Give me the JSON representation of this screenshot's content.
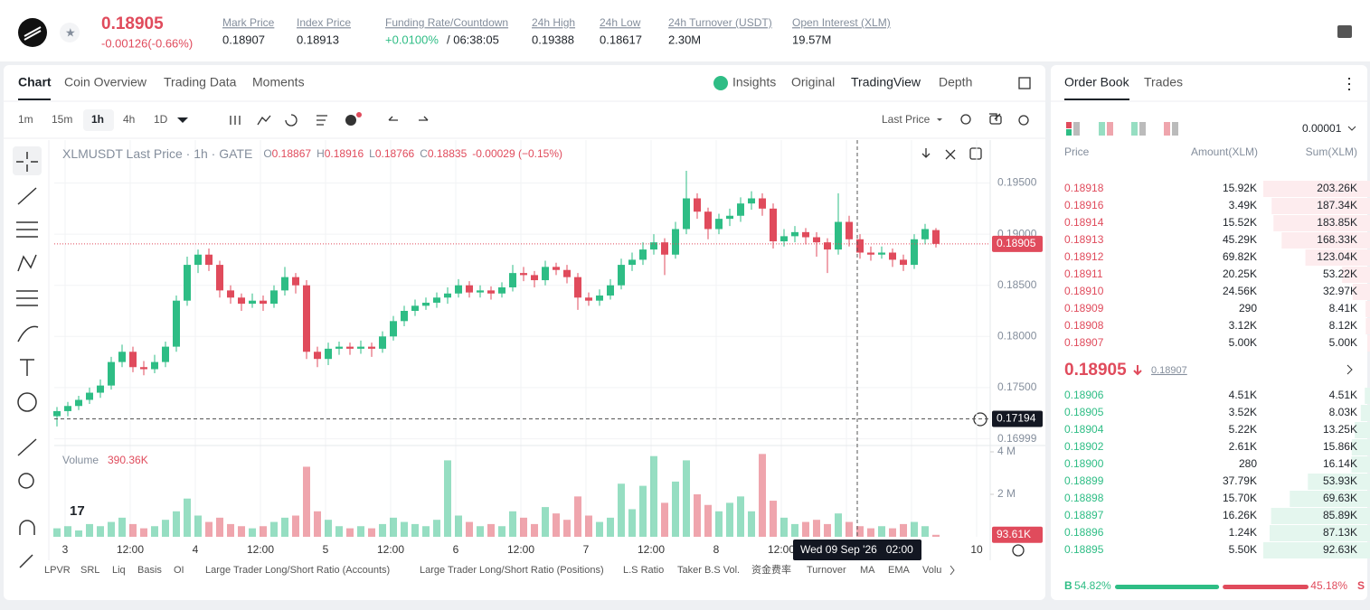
{
  "header": {
    "price": "0.18905",
    "change": "-0.00126(-0.66%)",
    "stats": [
      {
        "label": "Mark Price",
        "value": "0.18907"
      },
      {
        "label": "Index Price",
        "value": "0.18913"
      },
      {
        "label": "Funding Rate/Countdown",
        "value": "+0.0100%",
        "extra": "/ 06:38:05"
      },
      {
        "label": "24h High",
        "value": "0.19388"
      },
      {
        "label": "24h Low",
        "value": "0.18617"
      },
      {
        "label": "24h Turnover (USDT)",
        "value": "2.30M"
      },
      {
        "label": "Open Interest (XLM)",
        "value": "19.57M"
      }
    ]
  },
  "chart_tabs": [
    "Chart",
    "Coin Overview",
    "Trading Data",
    "Moments"
  ],
  "view_tabs": [
    "Insights",
    "Original",
    "TradingView",
    "Depth"
  ],
  "intervals": [
    "1m",
    "15m",
    "1h",
    "4h",
    "1D"
  ],
  "price_source": "Last Price",
  "chart_data": {
    "type": "candlestick",
    "title": "XLMUSDT Last Price · 1h · GATE",
    "ohlc": [
      {
        "label": "O",
        "value": "0.18867"
      },
      {
        "label": "H",
        "value": "0.18916"
      },
      {
        "label": "L",
        "value": "0.18766"
      },
      {
        "label": "C",
        "value": "0.18835"
      }
    ],
    "bar_change": "-0.00029 (−0.15%)",
    "ylim": [
      0.1696,
      0.1992
    ],
    "yticks": [
      {
        "value": 0.195,
        "label": "0.19500"
      },
      {
        "value": 0.19,
        "label": "0.19000"
      },
      {
        "value": 0.185,
        "label": "0.18500"
      },
      {
        "value": 0.18,
        "label": "0.18000"
      },
      {
        "value": 0.175,
        "label": "0.17500"
      },
      0.16999
    ],
    "up_color": "#2ebd85",
    "down_color": "#e04b5c",
    "grid": true,
    "last_price": 0.18905,
    "crosshair_price": 0.17194,
    "crosshair_time": "Wed 09 Sep '26   02:00",
    "x_labels": [
      "3",
      "12:00",
      "4",
      "12:00",
      "5",
      "12:00",
      "6",
      "12:00",
      "7",
      "12:00",
      "8",
      "12:00",
      null,
      null,
      "10"
    ],
    "candles": [
      [
        0.1722,
        0.1731,
        0.1712,
        0.1727
      ],
      [
        0.1727,
        0.1736,
        0.1722,
        0.1732
      ],
      [
        0.1732,
        0.1742,
        0.1728,
        0.1738
      ],
      [
        0.1738,
        0.175,
        0.1734,
        0.1745
      ],
      [
        0.1745,
        0.1758,
        0.174,
        0.1752
      ],
      [
        0.1752,
        0.178,
        0.1748,
        0.1775
      ],
      [
        0.1775,
        0.1792,
        0.177,
        0.1785
      ],
      [
        0.1785,
        0.179,
        0.1765,
        0.177
      ],
      [
        0.177,
        0.1776,
        0.1762,
        0.1768
      ],
      [
        0.1768,
        0.1782,
        0.1764,
        0.1775
      ],
      [
        0.1775,
        0.1795,
        0.177,
        0.179
      ],
      [
        0.179,
        0.184,
        0.1785,
        0.1835
      ],
      [
        0.1835,
        0.1878,
        0.183,
        0.187
      ],
      [
        0.187,
        0.1885,
        0.1862,
        0.188
      ],
      [
        0.188,
        0.1886,
        0.1864,
        0.187
      ],
      [
        0.187,
        0.1874,
        0.1838,
        0.1845
      ],
      [
        0.1845,
        0.185,
        0.1832,
        0.1838
      ],
      [
        0.1838,
        0.1842,
        0.1825,
        0.1832
      ],
      [
        0.1832,
        0.1842,
        0.1828,
        0.1835
      ],
      [
        0.1835,
        0.184,
        0.1825,
        0.1832
      ],
      [
        0.1832,
        0.185,
        0.1828,
        0.1845
      ],
      [
        0.1845,
        0.1868,
        0.184,
        0.1858
      ],
      [
        0.1858,
        0.1862,
        0.1842,
        0.185
      ],
      [
        0.185,
        0.1855,
        0.1778,
        0.1785
      ],
      [
        0.1785,
        0.179,
        0.177,
        0.1778
      ],
      [
        0.1778,
        0.1794,
        0.1772,
        0.1788
      ],
      [
        0.1788,
        0.1795,
        0.1782,
        0.179
      ],
      [
        0.179,
        0.1794,
        0.1782,
        0.1788
      ],
      [
        0.1788,
        0.1796,
        0.1783,
        0.179
      ],
      [
        0.179,
        0.1794,
        0.178,
        0.1788
      ],
      [
        0.1788,
        0.1805,
        0.1784,
        0.18
      ],
      [
        0.18,
        0.182,
        0.1796,
        0.1815
      ],
      [
        0.1815,
        0.183,
        0.181,
        0.1825
      ],
      [
        0.1825,
        0.1836,
        0.182,
        0.183
      ],
      [
        0.183,
        0.1838,
        0.1826,
        0.1833
      ],
      [
        0.1833,
        0.1843,
        0.1828,
        0.1838
      ],
      [
        0.1838,
        0.1848,
        0.1832,
        0.1842
      ],
      [
        0.1842,
        0.1856,
        0.1838,
        0.185
      ],
      [
        0.185,
        0.1854,
        0.1838,
        0.1843
      ],
      [
        0.1843,
        0.185,
        0.1838,
        0.1845
      ],
      [
        0.1845,
        0.1849,
        0.1836,
        0.1842
      ],
      [
        0.1842,
        0.1853,
        0.1838,
        0.1848
      ],
      [
        0.1848,
        0.187,
        0.1844,
        0.1862
      ],
      [
        0.1862,
        0.1868,
        0.1854,
        0.186
      ],
      [
        0.186,
        0.1864,
        0.1848,
        0.1855
      ],
      [
        0.1855,
        0.1874,
        0.185,
        0.1868
      ],
      [
        0.1868,
        0.1872,
        0.186,
        0.1865
      ],
      [
        0.1865,
        0.187,
        0.1852,
        0.1858
      ],
      [
        0.1858,
        0.1862,
        0.1826,
        0.1838
      ],
      [
        0.1838,
        0.1843,
        0.183,
        0.1835
      ],
      [
        0.1835,
        0.1846,
        0.183,
        0.184
      ],
      [
        0.184,
        0.1856,
        0.1836,
        0.185
      ],
      [
        0.185,
        0.1876,
        0.1846,
        0.187
      ],
      [
        0.187,
        0.1882,
        0.1864,
        0.1875
      ],
      [
        0.1875,
        0.1892,
        0.187,
        0.1885
      ],
      [
        0.1885,
        0.19,
        0.188,
        0.1892
      ],
      [
        0.1892,
        0.1896,
        0.186,
        0.188
      ],
      [
        0.188,
        0.1912,
        0.1876,
        0.1905
      ],
      [
        0.1905,
        0.1962,
        0.19,
        0.1935
      ],
      [
        0.1935,
        0.194,
        0.1915,
        0.1922
      ],
      [
        0.1922,
        0.1926,
        0.1895,
        0.1905
      ],
      [
        0.1905,
        0.192,
        0.19,
        0.1915
      ],
      [
        0.1915,
        0.1925,
        0.1908,
        0.1918
      ],
      [
        0.1918,
        0.1936,
        0.1912,
        0.193
      ],
      [
        0.193,
        0.1942,
        0.1924,
        0.1935
      ],
      [
        0.1935,
        0.194,
        0.1918,
        0.1925
      ],
      [
        0.1925,
        0.193,
        0.1886,
        0.1893
      ],
      [
        0.1893,
        0.1905,
        0.1888,
        0.1898
      ],
      [
        0.1898,
        0.1908,
        0.1892,
        0.1902
      ],
      [
        0.1902,
        0.1906,
        0.189,
        0.1897
      ],
      [
        0.1897,
        0.1902,
        0.1878,
        0.1892
      ],
      [
        0.1892,
        0.1896,
        0.1862,
        0.1885
      ],
      [
        0.1885,
        0.194,
        0.188,
        0.1912
      ],
      [
        0.1912,
        0.1918,
        0.1888,
        0.1895
      ],
      [
        0.1895,
        0.19,
        0.1876,
        0.1882
      ],
      [
        0.1882,
        0.1888,
        0.1874,
        0.188
      ],
      [
        0.188,
        0.1888,
        0.1876,
        0.1882
      ],
      [
        0.1882,
        0.1886,
        0.1868,
        0.1875
      ],
      [
        0.1875,
        0.188,
        0.1864,
        0.187
      ],
      [
        0.187,
        0.19,
        0.1866,
        0.1895
      ],
      [
        0.1895,
        0.191,
        0.189,
        0.1905
      ],
      [
        0.1904,
        0.1906,
        0.1887,
        0.18905
      ]
    ],
    "volume_title": "Volume",
    "volume_value": "390.36K",
    "vylim": [
      0,
      4000000
    ],
    "vyticks": [
      {
        "value": 2000000,
        "label": "2 M"
      },
      {
        "value": 4000000,
        "label": "4 M"
      }
    ],
    "volumes": [
      400000,
      500000,
      300000,
      600000,
      500000,
      700000,
      900000,
      600000,
      400000,
      500000,
      800000,
      1200000,
      1800000,
      1000000,
      700000,
      900000,
      600000,
      500000,
      400000,
      500000,
      700000,
      900000,
      1000000,
      3300000,
      1200000,
      800000,
      500000,
      400000,
      500000,
      400000,
      600000,
      900000,
      700000,
      600000,
      500000,
      800000,
      3600000,
      1000000,
      700000,
      500000,
      600000,
      500000,
      1200000,
      900000,
      600000,
      1400000,
      1100000,
      800000,
      1900000,
      1000000,
      700000,
      900000,
      2500000,
      1300000,
      2400000,
      3800000,
      1600000,
      2600000,
      3600000,
      2000000,
      1500000,
      1200000,
      1600000,
      1900000,
      1200000,
      3900000,
      1700000,
      900000,
      600000,
      700000,
      800000,
      600000,
      1100000,
      700000,
      500000,
      400000,
      500000,
      400000,
      600000,
      700000,
      500000,
      93610
    ],
    "last_volume_label": "93.61K"
  },
  "indicators": [
    "LPVR",
    "SRL",
    "Liq",
    "Basis",
    "OI",
    "Large Trader Long/Short Ratio (Accounts)",
    "Large Trader Long/Short Ratio (Positions)",
    "L.S Ratio",
    "Taker B.S Vol.",
    "资金费率",
    "Turnover",
    "MA",
    "EMA",
    "Volu"
  ],
  "order_book": {
    "tabs": [
      "Order Book",
      "Trades"
    ],
    "precision": "0.00001",
    "headers": [
      "Price",
      "Amount(XLM)",
      "Sum(XLM)"
    ],
    "asks": [
      {
        "price": "0.18918",
        "amount": "15.92K",
        "sum": 203260,
        "sum_label": "203.26K"
      },
      {
        "price": "0.18916",
        "amount": "3.49K",
        "sum": 187340,
        "sum_label": "187.34K"
      },
      {
        "price": "0.18914",
        "amount": "15.52K",
        "sum": 183850,
        "sum_label": "183.85K"
      },
      {
        "price": "0.18913",
        "amount": "45.29K",
        "sum": 168330,
        "sum_label": "168.33K"
      },
      {
        "price": "0.18912",
        "amount": "69.82K",
        "sum": 123040,
        "sum_label": "123.04K"
      },
      {
        "price": "0.18911",
        "amount": "20.25K",
        "sum": 53220,
        "sum_label": "53.22K"
      },
      {
        "price": "0.18910",
        "amount": "24.56K",
        "sum": 32970,
        "sum_label": "32.97K"
      },
      {
        "price": "0.18909",
        "amount": "290",
        "sum": 8410,
        "sum_label": "8.41K"
      },
      {
        "price": "0.18908",
        "amount": "3.12K",
        "sum": 8120,
        "sum_label": "8.12K"
      },
      {
        "price": "0.18907",
        "amount": "5.00K",
        "sum": 5000,
        "sum_label": "5.00K"
      }
    ],
    "mid_price": "0.18905",
    "mark_price": "0.18907",
    "bids": [
      {
        "price": "0.18906",
        "amount": "4.51K",
        "sum": 4510,
        "sum_label": "4.51K"
      },
      {
        "price": "0.18905",
        "amount": "3.52K",
        "sum": 8030,
        "sum_label": "8.03K"
      },
      {
        "price": "0.18904",
        "amount": "5.22K",
        "sum": 13250,
        "sum_label": "13.25K"
      },
      {
        "price": "0.18902",
        "amount": "2.61K",
        "sum": 15860,
        "sum_label": "15.86K"
      },
      {
        "price": "0.18900",
        "amount": "280",
        "sum": 16140,
        "sum_label": "16.14K"
      },
      {
        "price": "0.18899",
        "amount": "37.79K",
        "sum": 53930,
        "sum_label": "53.93K"
      },
      {
        "price": "0.18898",
        "amount": "15.70K",
        "sum": 69630,
        "sum_label": "69.63K"
      },
      {
        "price": "0.18897",
        "amount": "16.26K",
        "sum": 85890,
        "sum_label": "85.89K"
      },
      {
        "price": "0.18896",
        "amount": "1.24K",
        "sum": 87130,
        "sum_label": "87.13K"
      },
      {
        "price": "0.18895",
        "amount": "5.50K",
        "sum": 92630,
        "sum_label": "92.63K"
      }
    ],
    "buy_letter": "B",
    "buy_ratio": 54.82,
    "buy_label": "54.82%",
    "sell_ratio": 45.18,
    "sell_label": "45.18%",
    "sell_letter": "S"
  }
}
